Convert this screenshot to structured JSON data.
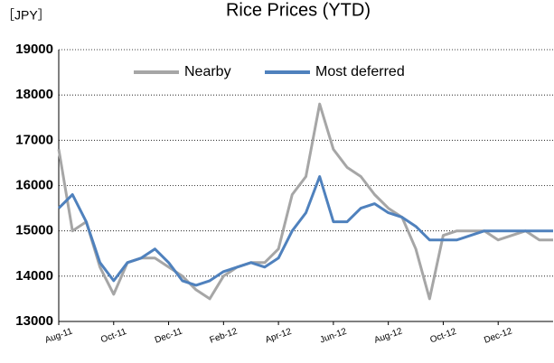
{
  "chart_data": {
    "type": "line",
    "title": "Rice Prices (YTD)",
    "y_label": "［JPY］",
    "categories": [
      "Aug-11",
      null,
      null,
      null,
      "Oct-11",
      null,
      null,
      null,
      "Dec-11",
      null,
      null,
      null,
      "Feb-12",
      null,
      null,
      null,
      "Apr-12",
      null,
      null,
      null,
      "Jun-12",
      null,
      null,
      null,
      "Aug-12",
      null,
      null,
      null,
      "Oct-12",
      null,
      null,
      null,
      "Dec-12",
      null,
      null,
      null,
      null
    ],
    "series": [
      {
        "name": "Nearby",
        "color": "#a6a6a6",
        "values": [
          16800,
          15000,
          15200,
          14200,
          13600,
          14300,
          14400,
          14400,
          14200,
          14000,
          13700,
          13500,
          14000,
          14200,
          14300,
          14300,
          14600,
          15800,
          16200,
          17800,
          16800,
          16400,
          16200,
          15800,
          15500,
          15300,
          14600,
          13500,
          14900,
          15000,
          15000,
          15000,
          14800,
          14900,
          15000,
          14800,
          14800
        ]
      },
      {
        "name": "Most deferred",
        "color": "#4f81bd",
        "values": [
          15500,
          15800,
          15200,
          14300,
          13900,
          14300,
          14400,
          14600,
          14300,
          13900,
          13800,
          13900,
          14100,
          14200,
          14300,
          14200,
          14400,
          15000,
          15400,
          16200,
          15200,
          15200,
          15500,
          15600,
          15400,
          15300,
          15100,
          14800,
          14800,
          14800,
          14900,
          15000,
          15000,
          15000,
          15000,
          15000,
          15000
        ]
      }
    ],
    "ylim": [
      13000,
      19000
    ],
    "yticks": [
      13000,
      14000,
      15000,
      16000,
      17000,
      18000,
      19000
    ],
    "grid": true,
    "legend": "top"
  }
}
